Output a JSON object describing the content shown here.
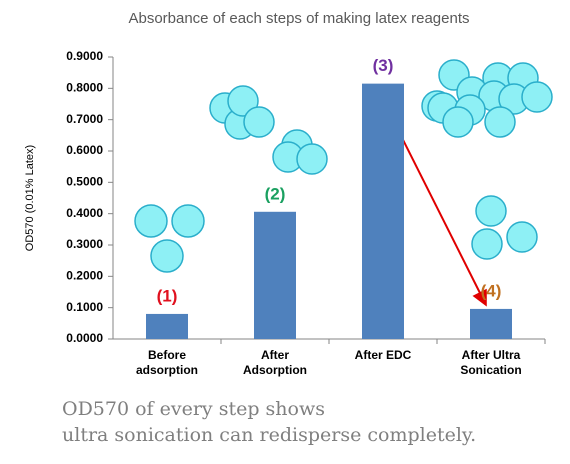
{
  "chart_data": {
    "type": "bar",
    "title": "Absorbance of each steps of making latex reagents",
    "ylabel": "OD570 (0.01% Latex)",
    "categories": [
      "Before adsorption",
      "After Adsorption",
      "After EDC",
      "After Ultra Sonication"
    ],
    "values": [
      0.08,
      0.406,
      0.815,
      0.096
    ],
    "color": "#4f81bd",
    "ylim": [
      0,
      0.9
    ],
    "yticks": [
      {
        "value": 0,
        "label": "0.0000"
      },
      {
        "value": 0.1,
        "label": "0.1000"
      },
      {
        "value": 0.2,
        "label": "0.2000"
      },
      {
        "value": 0.3,
        "label": "0.3000"
      },
      {
        "value": 0.4,
        "label": "0.4000"
      },
      {
        "value": 0.5,
        "label": "0.5000"
      },
      {
        "value": 0.6,
        "label": "0.6000"
      },
      {
        "value": 0.7,
        "label": "0.7000"
      },
      {
        "value": 0.8,
        "label": "0.8000"
      },
      {
        "value": 0.9,
        "label": "0.9000"
      }
    ],
    "grid": false,
    "annotations": [
      {
        "text": "(1)",
        "color": "#e0101e"
      },
      {
        "text": "(2)",
        "color": "#1aa060"
      },
      {
        "text": "(3)",
        "color": "#7030a0"
      },
      {
        "text": "(4)",
        "color": "#c07020"
      }
    ],
    "caption": [
      "OD570 of every step shows",
      "ultra sonication can redisperse completely."
    ]
  }
}
